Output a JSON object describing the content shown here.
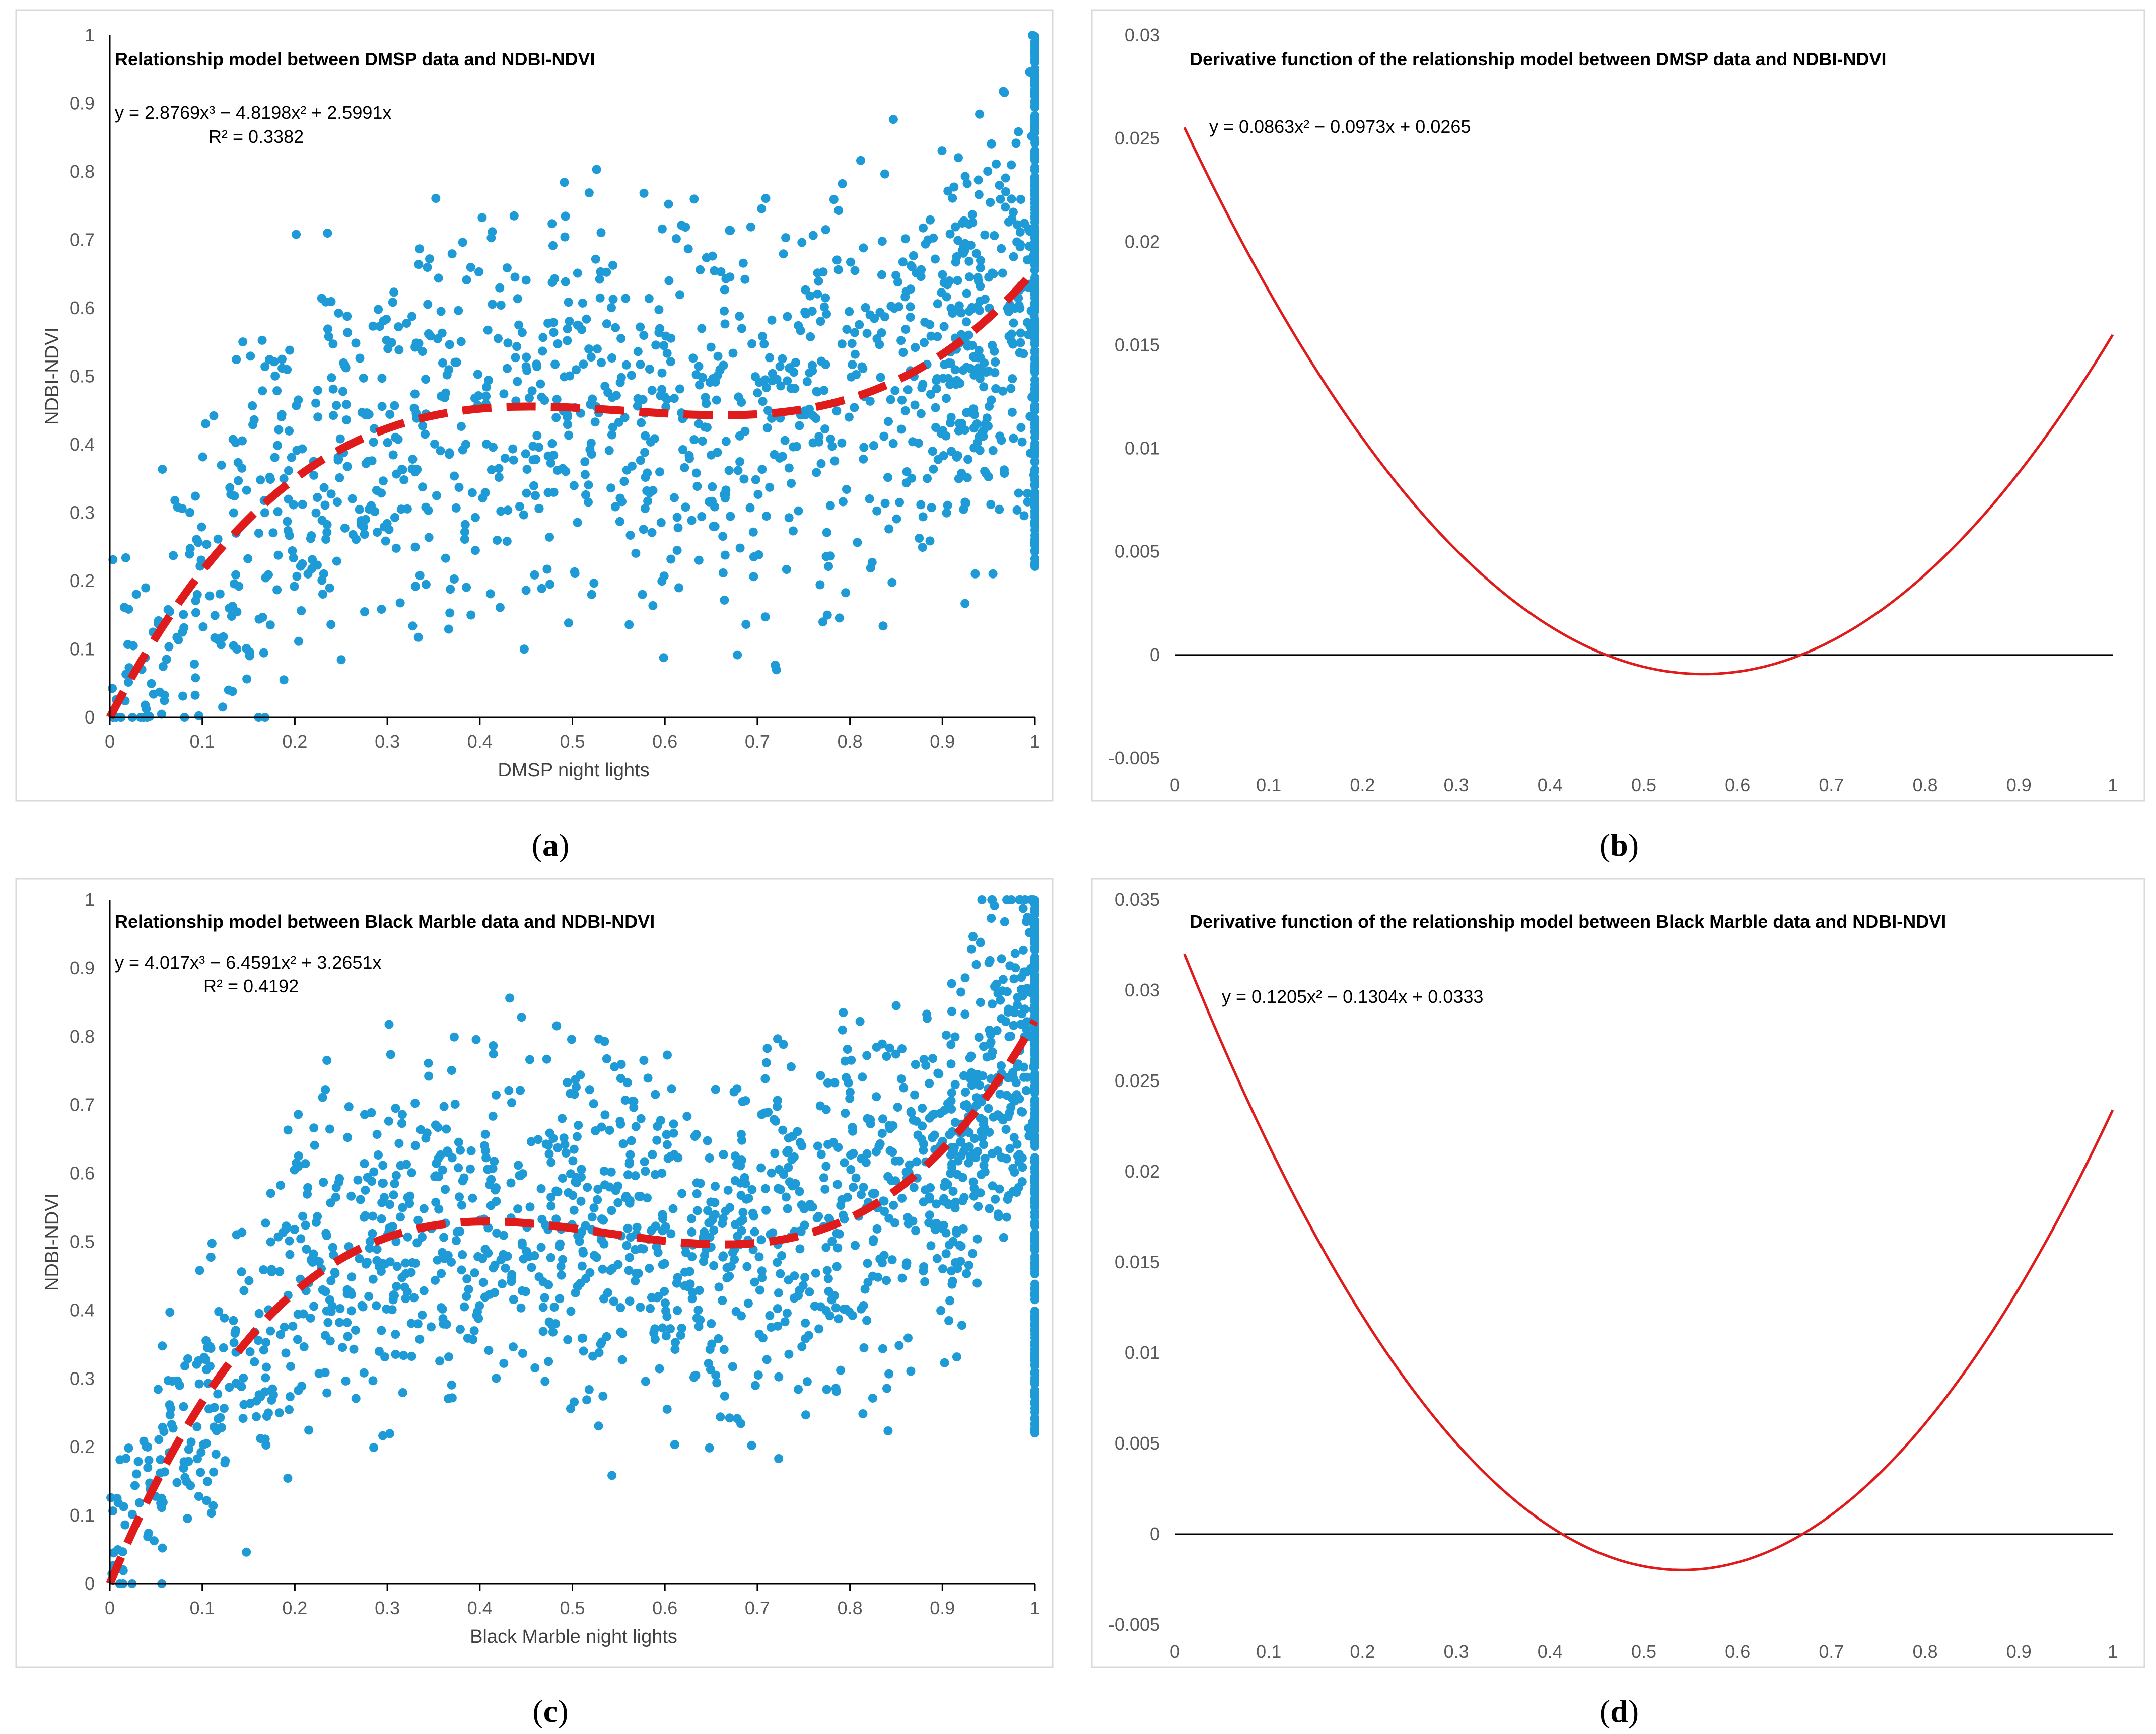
{
  "colors": {
    "scatter": "#1e9ad6",
    "trend": "#e01b1b",
    "derivative": "#e01b1b",
    "axis": "#000000",
    "panel_border": "#d9d9d9"
  },
  "captions": [
    {
      "open": "(",
      "letter": "a",
      "close": ")"
    },
    {
      "open": "(",
      "letter": "b",
      "close": ")"
    },
    {
      "open": "(",
      "letter": "c",
      "close": ")"
    },
    {
      "open": "(",
      "letter": "d",
      "close": ")"
    }
  ],
  "chart_data": [
    {
      "type": "scatter",
      "title": "Relationship model between DMSP data and NDBI-NDVI",
      "equation": "y = 2.8769x³ − 4.8198x² + 2.5991x",
      "r2": "R² = 0.3382",
      "xlabel": "DMSP night lights",
      "ylabel": "NDBI-NDVI",
      "xlim": [
        0,
        1
      ],
      "ylim": [
        0,
        1
      ],
      "xticks": [
        "0",
        "0.1",
        "0.2",
        "0.3",
        "0.4",
        "0.5",
        "0.6",
        "0.7",
        "0.8",
        "0.9",
        "1"
      ],
      "yticks": [
        "0",
        "0.1",
        "0.2",
        "0.3",
        "0.4",
        "0.5",
        "0.6",
        "0.7",
        "0.8",
        "0.9",
        "1"
      ],
      "trend_coefficients": [
        0,
        2.5991,
        -4.8198,
        2.8769
      ],
      "scatter": {
        "n": 1500,
        "seed": 11,
        "description": "NDBI-NDVI values scattered around the cubic trend; dense vertical cluster at x = 1",
        "spread": 0.19
      }
    },
    {
      "type": "line",
      "title": "Derivative function of the relationship model between DMSP data and NDBI-NDVI",
      "equation": "y = 0.0863x² − 0.0973x + 0.0265",
      "xlabel": "",
      "ylabel": "",
      "xlim": [
        0,
        1
      ],
      "ylim": [
        -0.005,
        0.03
      ],
      "xticks": [
        "0",
        "0.1",
        "0.2",
        "0.3",
        "0.4",
        "0.5",
        "0.6",
        "0.7",
        "0.8",
        "0.9",
        "1"
      ],
      "yticks": [
        "-0.005",
        "0",
        "0.005",
        "0.01",
        "0.015",
        "0.02",
        "0.025",
        "0.03"
      ],
      "curve_coefficients": [
        0.0265,
        -0.0973,
        0.0863
      ],
      "x_range": [
        0.01,
        1
      ]
    },
    {
      "type": "scatter",
      "title": "Relationship model between Black Marble data and NDBI-NDVI",
      "equation": "y = 4.017x³ − 6.4591x² + 3.2651x",
      "r2": "R² = 0.4192",
      "xlabel": "Black Marble night lights",
      "ylabel": "NDBI-NDVI",
      "xlim": [
        0,
        1
      ],
      "ylim": [
        0,
        1
      ],
      "xticks": [
        "0",
        "0.1",
        "0.2",
        "0.3",
        "0.4",
        "0.5",
        "0.6",
        "0.7",
        "0.8",
        "0.9",
        "1"
      ],
      "yticks": [
        "0",
        "0.1",
        "0.2",
        "0.3",
        "0.4",
        "0.5",
        "0.6",
        "0.7",
        "0.8",
        "0.9",
        "1"
      ],
      "trend_coefficients": [
        0,
        3.2651,
        -6.4591,
        4.017
      ],
      "scatter": {
        "n": 1800,
        "seed": 29,
        "description": "NDBI-NDVI values scattered around the cubic trend; dense vertical cluster at x = 1",
        "spread": 0.16
      }
    },
    {
      "type": "line",
      "title": "Derivative function of the relationship model between Black Marble data and NDBI-NDVI",
      "equation": "y = 0.1205x² − 0.1304x + 0.0333",
      "xlabel": "",
      "ylabel": "",
      "xlim": [
        0,
        1
      ],
      "ylim": [
        -0.005,
        0.035
      ],
      "xticks": [
        "0",
        "0.1",
        "0.2",
        "0.3",
        "0.4",
        "0.5",
        "0.6",
        "0.7",
        "0.8",
        "0.9",
        "1"
      ],
      "yticks": [
        "-0.005",
        "0",
        "0.005",
        "0.01",
        "0.015",
        "0.02",
        "0.025",
        "0.03",
        "0.035"
      ],
      "curve_coefficients": [
        0.0333,
        -0.1304,
        0.1205
      ],
      "x_range": [
        0.01,
        1
      ]
    }
  ]
}
